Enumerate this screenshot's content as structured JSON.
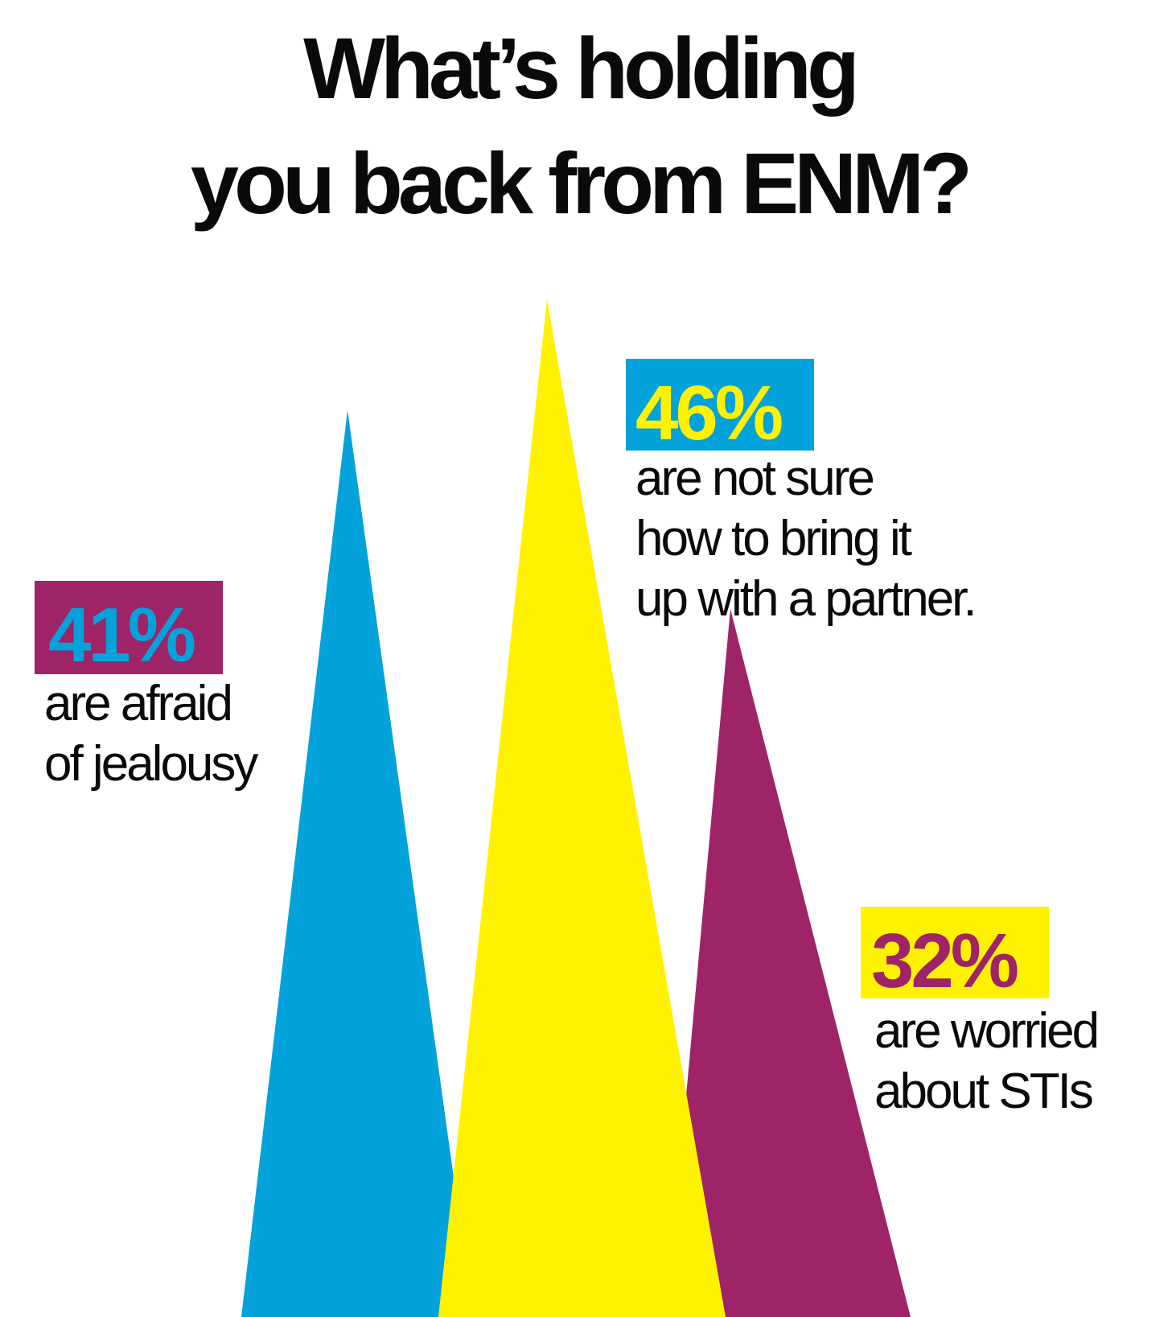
{
  "colors": {
    "blue": "#03A2DB",
    "yellow": "#FFF200",
    "magenta": "#9E2467",
    "text": "#0a0a0a",
    "background": "#ffffff"
  },
  "chart_data": {
    "type": "bar",
    "style": "triangular peaks",
    "title": "What’s holding you back from ENM?",
    "title_lines": [
      "What’s holding",
      "you back from ENM?"
    ],
    "unit": "%",
    "series": [
      {
        "value": 41,
        "label": "41%",
        "description_lines": [
          "are afraid",
          "of jealousy"
        ],
        "color": "#03A2DB",
        "label_box_color": "#9E2467",
        "label_text_color": "#03A2DB"
      },
      {
        "value": 46,
        "label": "46%",
        "description_lines": [
          "are not sure",
          "how to bring it",
          "up with a partner."
        ],
        "color": "#FFF200",
        "label_box_color": "#03A2DB",
        "label_text_color": "#FFF200"
      },
      {
        "value": 32,
        "label": "32%",
        "description_lines": [
          "are worried",
          "about STIs"
        ],
        "color": "#9E2467",
        "label_box_color": "#FFF200",
        "label_text_color": "#9E2467"
      }
    ]
  }
}
